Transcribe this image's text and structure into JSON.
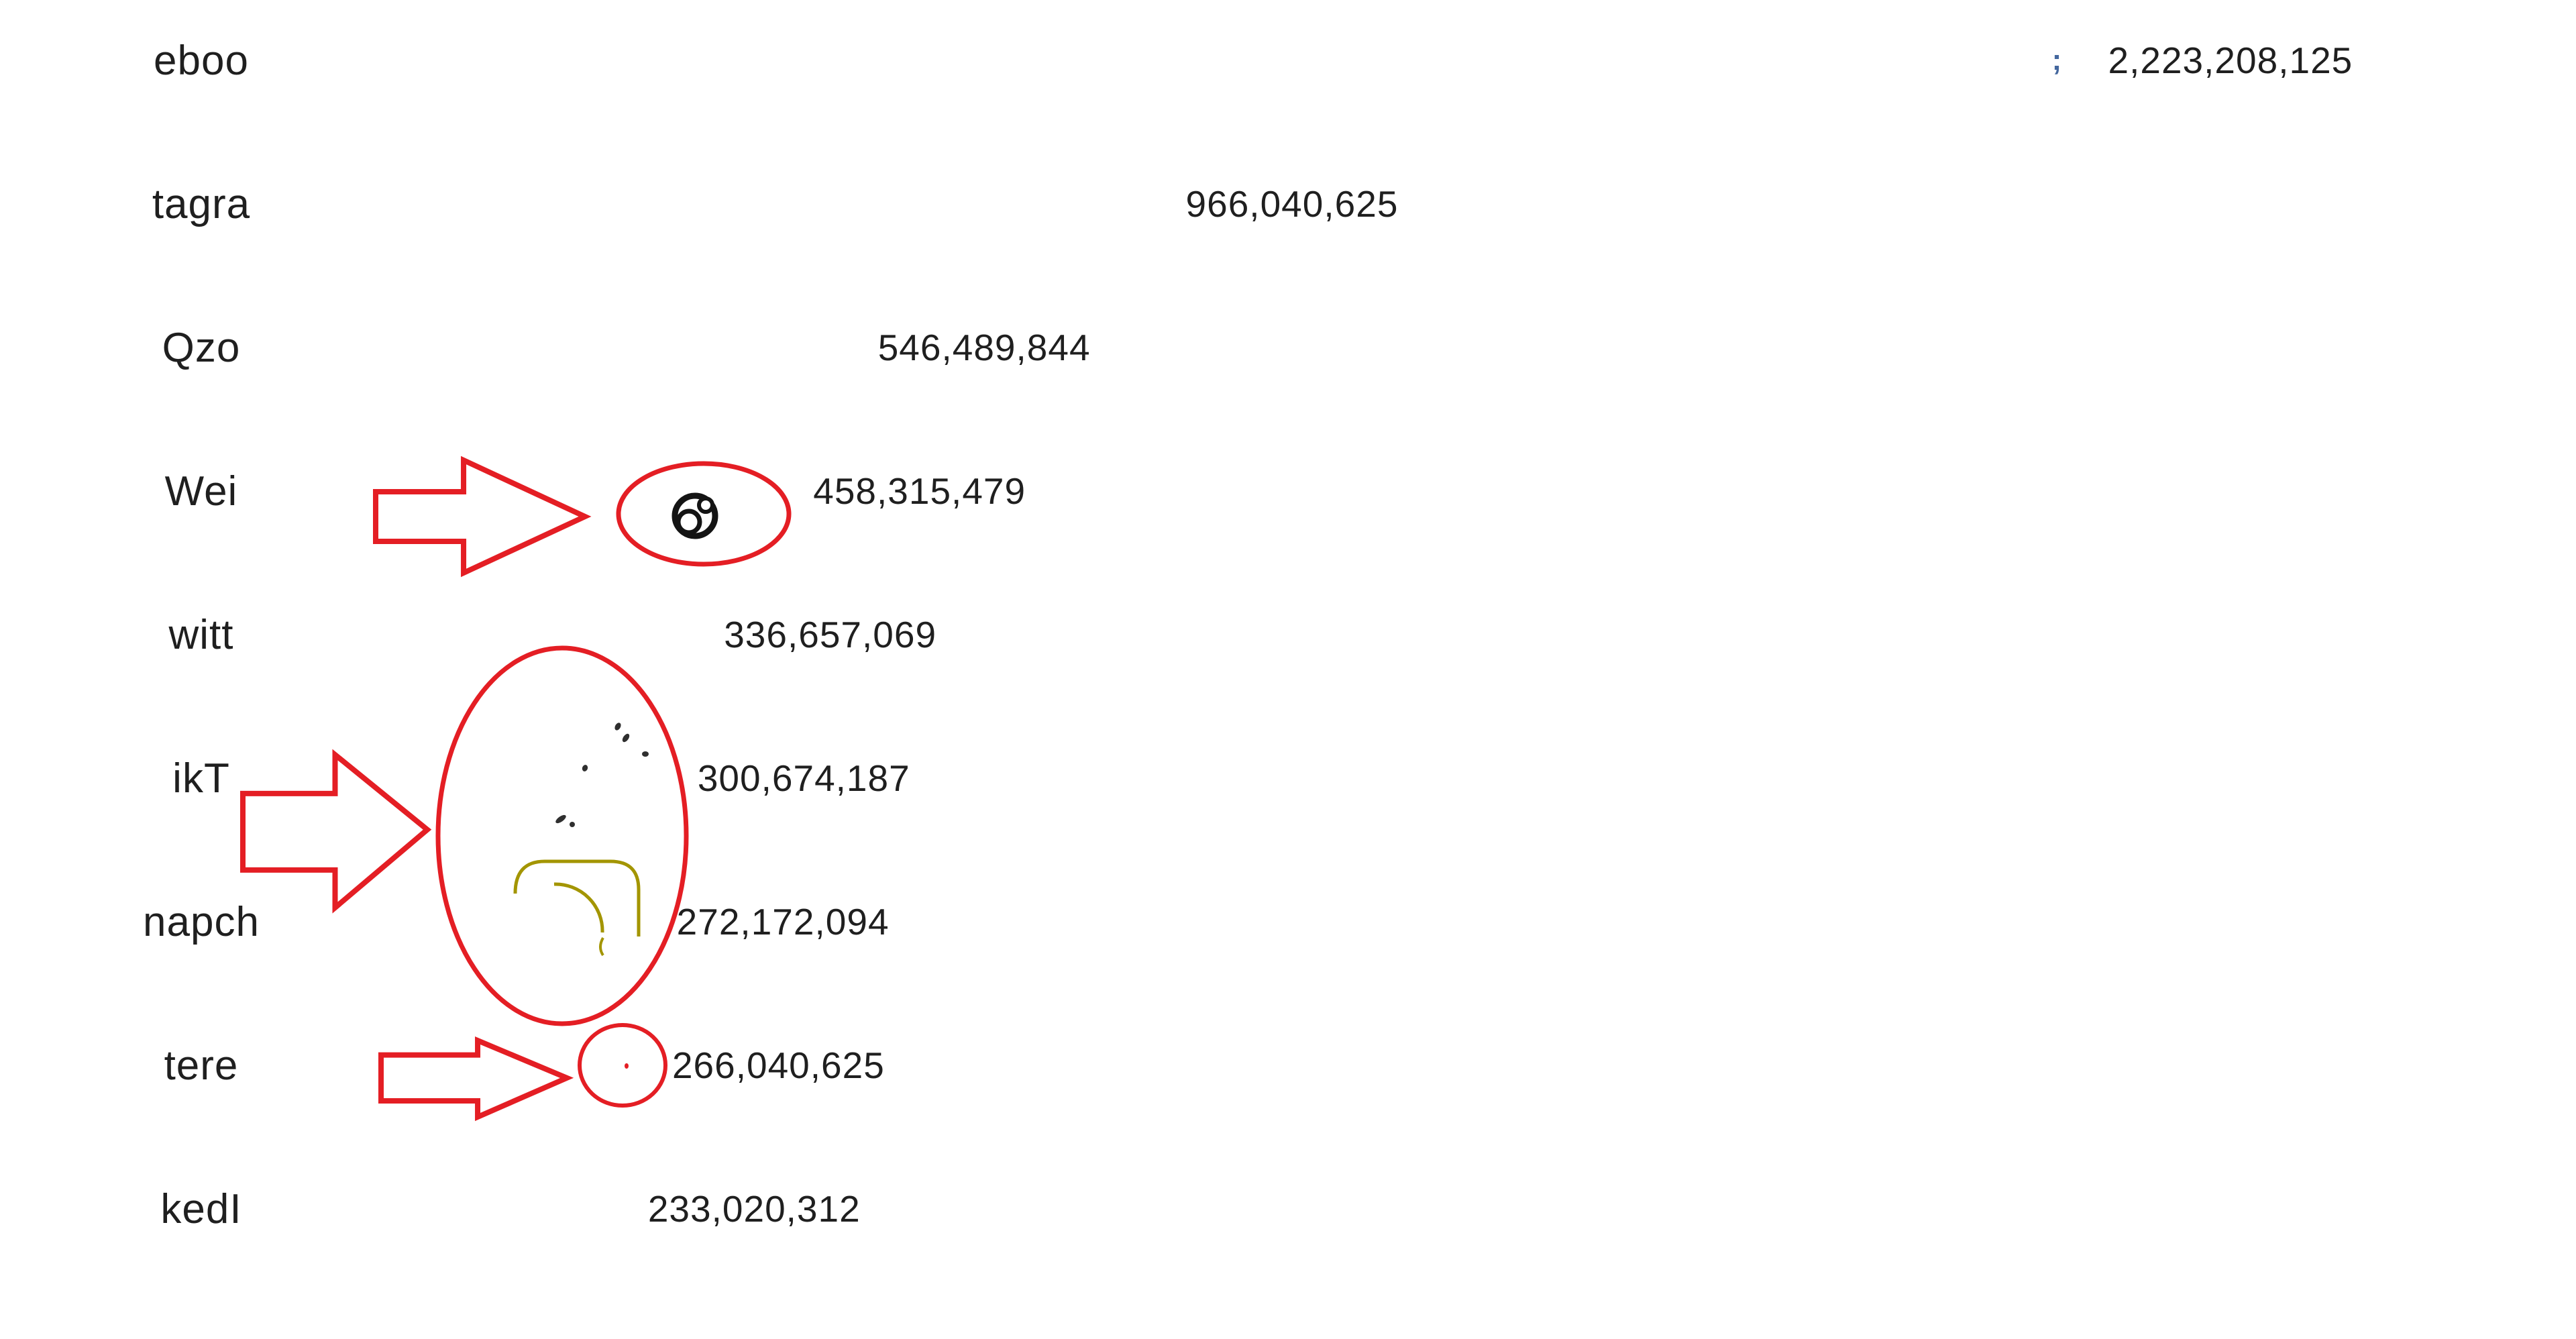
{
  "page": {
    "background": "#ffffff"
  },
  "colors": {
    "text": "#1f1f1f",
    "annotation_red": "#e41e24",
    "artifact_olive": "#a39500",
    "mark_blue": "#44679e",
    "icon_black": "#141414"
  },
  "chart_data": {
    "type": "bar",
    "orientation": "horizontal",
    "bars_visible": false,
    "title": "",
    "xlabel": "",
    "ylabel": "",
    "grid": false,
    "legend": false,
    "xlim": [
      0,
      2900000000
    ],
    "categories": [
      "eboo",
      "tagra",
      "Qzo",
      "Wei",
      "witt",
      "ikT",
      "napch",
      "tere",
      "kedI"
    ],
    "values": [
      2223208125,
      966040625,
      546489844,
      458315479,
      336657069,
      300674187,
      272172094,
      266040625,
      233020312
    ],
    "value_labels": [
      "2,223,208,125",
      "966,040,625",
      "546,489,844",
      "458,315,479",
      "336,657,069",
      "300,674,187",
      "272,172,094",
      "266,040,625",
      "233,020,312"
    ]
  },
  "annotations": {
    "semicolon_mark": ";",
    "items": [
      {
        "type": "block-arrow",
        "points_to": "Wei row icon"
      },
      {
        "type": "ellipse",
        "around": "ring icon on Wei row"
      },
      {
        "type": "block-arrow",
        "points_to": "ikT / napch area"
      },
      {
        "type": "ellipse",
        "around": "faint icon remnants between ikT and napch"
      },
      {
        "type": "block-arrow",
        "points_to": "tere row"
      },
      {
        "type": "ellipse",
        "around": "tiny red dot on tere row"
      }
    ]
  }
}
